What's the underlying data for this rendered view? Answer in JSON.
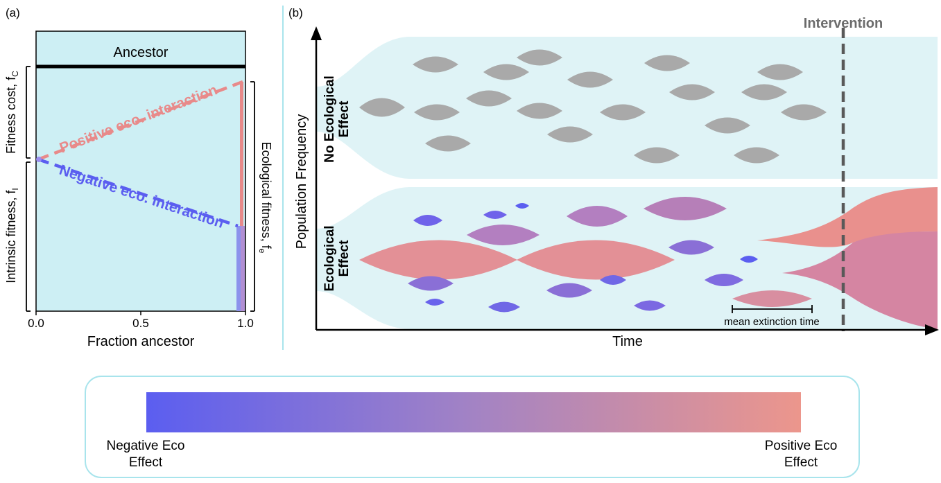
{
  "panel_a": {
    "label": "(a)",
    "ancestor_label": "Ancestor",
    "positive_label": "Positive eco. interaction",
    "negative_label": "Negative eco. interaction",
    "fitness_cost_label": "Fitness cost, f",
    "fitness_cost_sub": "C",
    "intrinsic_label": "Intrinsic fitness, f",
    "intrinsic_sub": "I",
    "ecological_label": "Ecological fitness, f",
    "ecological_sub": "e",
    "xlabel": "Fraction ancestor",
    "xticks": [
      "0.0",
      "0.5",
      "1.0"
    ]
  },
  "panel_b": {
    "label": "(b)",
    "intervention_label": "Intervention",
    "ylabel": "Population Frequency",
    "xlabel": "Time",
    "no_eco_label_line1": "No Ecological",
    "no_eco_label_line2": "Effect",
    "eco_label_line1": "Ecological",
    "eco_label_line2": "Effect",
    "mean_extinction_label": "mean extinction time"
  },
  "legend": {
    "left_line1": "Negative Eco",
    "left_line2": "Effect",
    "right_line1": "Positive Eco",
    "right_line2": "Effect"
  },
  "colors": {
    "background_band": "#dff3f6",
    "panel_a_bg": "#cdeff4",
    "divider": "#a8e4ec",
    "positive": "#e88a8a",
    "negative": "#5b5ef0",
    "gray_lineage": "#a9a9a9",
    "intervention": "#595959"
  }
}
